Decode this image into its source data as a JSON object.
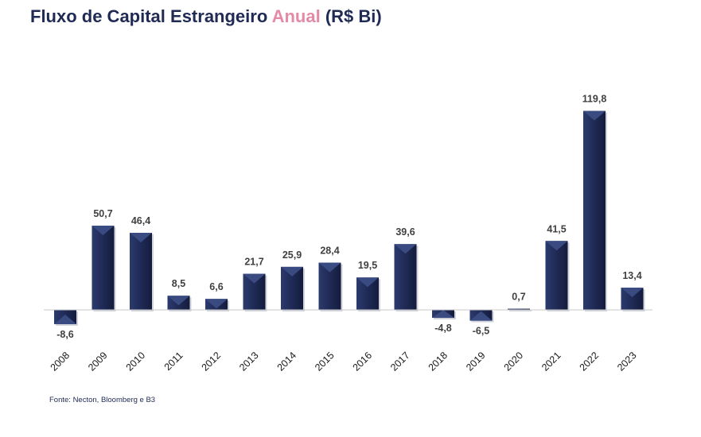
{
  "title": {
    "part1": "Fluxo de Capital Estrangeiro ",
    "accent": "Anual",
    "part2": " (R$ Bi)"
  },
  "source": "Fonte: Necton, Bloomberg e B3",
  "colors": {
    "bar": "#1f2a55",
    "bar_highlight": "#3a4b82",
    "title": "#1f2a55",
    "title_accent": "#e48aa6",
    "zero_line": "#c8c8c8"
  },
  "chart_data": {
    "type": "bar",
    "title": "Fluxo de Capital Estrangeiro Anual (R$ Bi)",
    "categories": [
      "2008",
      "2009",
      "2010",
      "2011",
      "2012",
      "2013",
      "2014",
      "2015",
      "2016",
      "2017",
      "2018",
      "2019",
      "2020",
      "2021",
      "2022",
      "2023"
    ],
    "values": [
      -8.6,
      50.7,
      46.4,
      8.5,
      6.6,
      21.7,
      25.9,
      28.4,
      19.5,
      39.6,
      -4.8,
      -6.5,
      0.7,
      41.5,
      119.8,
      13.4
    ],
    "labels": [
      "-8,6",
      "50,7",
      "46,4",
      "8,5",
      "6,6",
      "21,7",
      "25,9",
      "28,4",
      "19,5",
      "39,6",
      "-4,8",
      "-6,5",
      "0,7",
      "41,5",
      "119,8",
      "13,4"
    ],
    "xlabel": "",
    "ylabel": "",
    "grid": false,
    "legend": "none"
  }
}
